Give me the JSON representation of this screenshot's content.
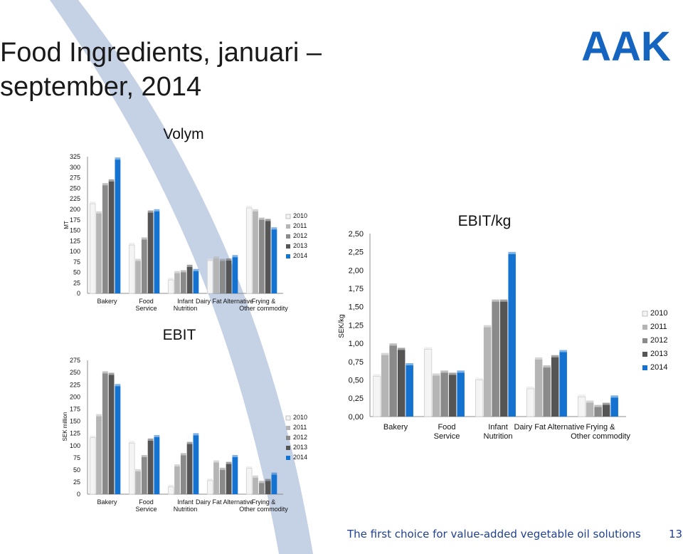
{
  "slide": {
    "title": "Food Ingredients, januari – september, 2014",
    "footer": "The first choice for value-added vegetable oil solutions",
    "page_number": "13",
    "logo_text": "AAK",
    "colors": {
      "brand_blue": "#1565c0",
      "swoosh": "#c5d1e4",
      "footer_blue": "#1f3f8f",
      "series": [
        "#f4f4f4",
        "#b5b5b5",
        "#8a8a8a",
        "#555555",
        "#1472d0"
      ]
    }
  },
  "chart_data": [
    {
      "type": "bar",
      "title": "Volym",
      "ylabel": "MT",
      "xlabel": "",
      "categories": [
        "Bakery",
        "Food Service",
        "Infant Nutrition",
        "Dairy Fat Alternative",
        "Frying & Other commodity"
      ],
      "ylim": [
        0,
        325
      ],
      "yticks": [
        "0",
        "25",
        "50",
        "75",
        "100",
        "125",
        "150",
        "175",
        "200",
        "225",
        "250",
        "275",
        "300",
        "325"
      ],
      "legend_position": "right",
      "grid": false,
      "series": [
        {
          "name": "2010",
          "values": [
            213,
            115,
            32,
            78,
            203
          ]
        },
        {
          "name": "2011",
          "values": [
            190,
            77,
            48,
            83,
            195
          ]
        },
        {
          "name": "2012",
          "values": [
            257,
            128,
            50,
            77,
            175
          ]
        },
        {
          "name": "2013",
          "values": [
            266,
            192,
            63,
            78,
            172
          ]
        },
        {
          "name": "2014",
          "values": [
            318,
            195,
            53,
            86,
            152
          ]
        }
      ]
    },
    {
      "type": "bar",
      "title": "EBIT",
      "ylabel": "SEK million",
      "xlabel": "",
      "categories": [
        "Bakery",
        "Food Service",
        "Infant Nutrition",
        "Dairy Fat Alternative",
        "Frying & Other commodity"
      ],
      "ylim": [
        0,
        275
      ],
      "yticks": [
        "0",
        "25",
        "50",
        "75",
        "100",
        "125",
        "150",
        "175",
        "200",
        "225",
        "250",
        "275"
      ],
      "legend_position": "right",
      "grid": false,
      "series": [
        {
          "name": "2010",
          "values": [
            116,
            105,
            15,
            28,
            53
          ]
        },
        {
          "name": "2011",
          "values": [
            160,
            47,
            57,
            65,
            34
          ]
        },
        {
          "name": "2012",
          "values": [
            248,
            76,
            80,
            50,
            23
          ]
        },
        {
          "name": "2013",
          "values": [
            245,
            110,
            103,
            62,
            27
          ]
        },
        {
          "name": "2014",
          "values": [
            222,
            117,
            121,
            76,
            40
          ]
        }
      ]
    },
    {
      "type": "bar",
      "title": "EBIT/kg",
      "ylabel": "SEK/kg",
      "xlabel": "",
      "categories": [
        "Bakery",
        "Food Service",
        "Infant Nutrition",
        "Dairy Fat Alternative",
        "Frying & Other commodity"
      ],
      "ylim": [
        0,
        2.5
      ],
      "yticks": [
        "0,00",
        "0,25",
        "0,50",
        "0,75",
        "1,00",
        "1,25",
        "1,50",
        "1,75",
        "2,00",
        "2,25",
        "2,50"
      ],
      "legend_position": "right",
      "grid": false,
      "series": [
        {
          "name": "2010",
          "values": [
            0.55,
            0.92,
            0.5,
            0.38,
            0.27
          ]
        },
        {
          "name": "2011",
          "values": [
            0.84,
            0.56,
            1.22,
            0.78,
            0.19
          ]
        },
        {
          "name": "2012",
          "values": [
            0.97,
            0.6,
            1.57,
            0.67,
            0.13
          ]
        },
        {
          "name": "2013",
          "values": [
            0.91,
            0.57,
            1.57,
            0.81,
            0.16
          ]
        },
        {
          "name": "2014",
          "values": [
            0.7,
            0.6,
            2.22,
            0.88,
            0.26
          ]
        }
      ]
    }
  ]
}
